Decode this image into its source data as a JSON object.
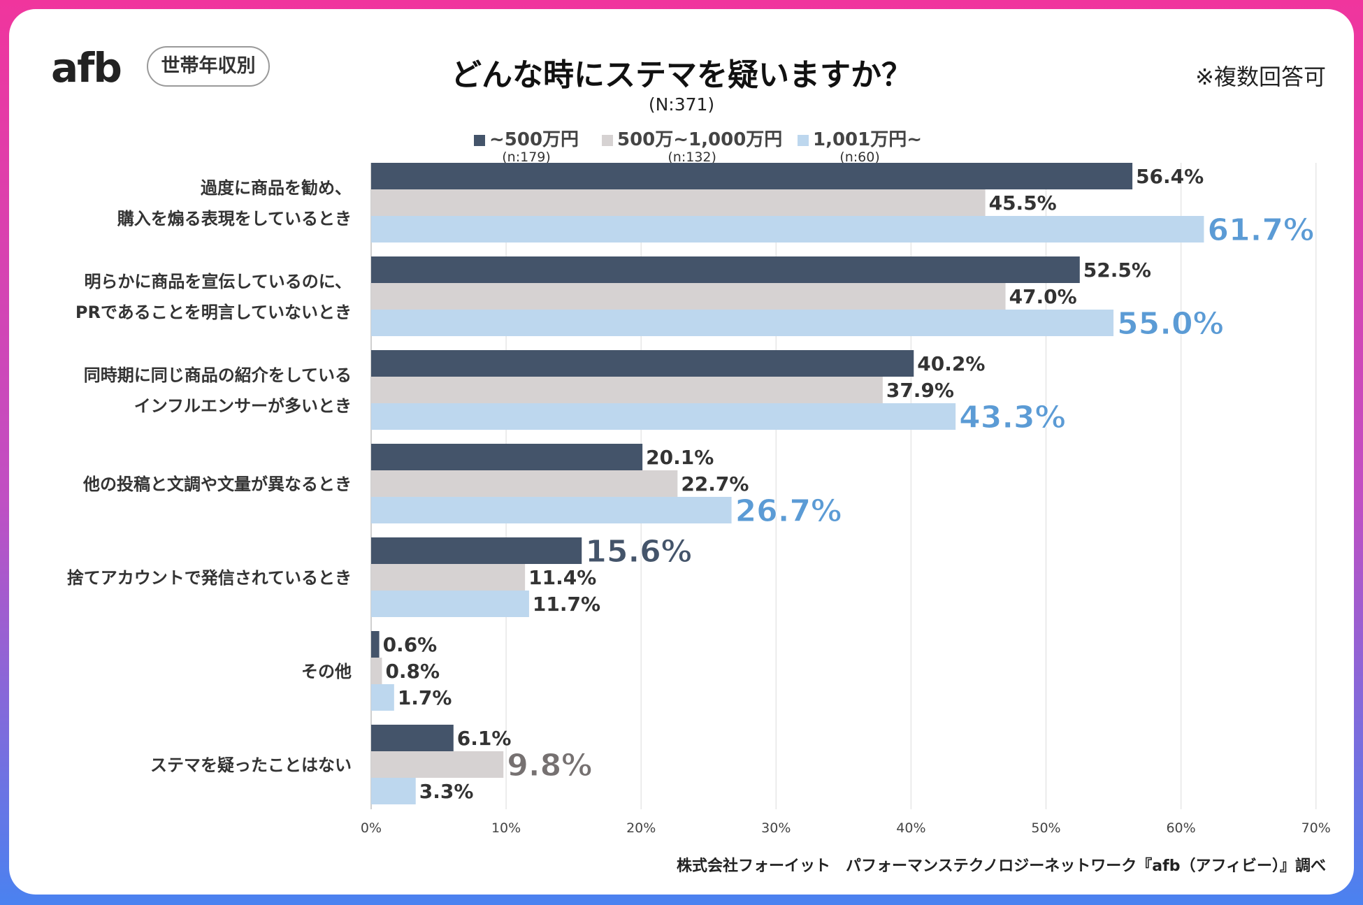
{
  "logo_text": "afb",
  "segment_pill": "世帯年収別",
  "note": "※複数回答可",
  "footer": "株式会社フォーイット　パフォーマンステクノロジーネットワーク『afb（アフィビー）』調べ",
  "colors": {
    "series1": "#44546a",
    "series2": "#d6d2d2",
    "series3": "#bdd7ee",
    "highlight3": "#5b9bd5",
    "highlight1": "#44546a",
    "highlight2": "#767171",
    "grid": "#e6e6e6"
  },
  "legend": [
    {
      "label": "~500万円",
      "count": "(n:179)"
    },
    {
      "label": "500万~1,000万円",
      "count": "(n:132)"
    },
    {
      "label": "1,001万円~",
      "count": "(n:60)"
    }
  ],
  "chart_data": {
    "type": "bar",
    "orientation": "horizontal",
    "title": "どんな時にステマを疑いますか？",
    "subtitle": "(N:371)",
    "categories": [
      [
        "過度に商品を勧め、",
        "購入を煽る表現をしているとき"
      ],
      [
        "明らかに商品を宣伝しているのに、",
        "PRであることを明言していないとき"
      ],
      [
        "同時期に同じ商品の紹介をしている",
        "インフルエンサーが多いとき"
      ],
      [
        "他の投稿と文調や文量が異なるとき"
      ],
      [
        "捨てアカウントで発信されているとき"
      ],
      [
        "その他"
      ],
      [
        "ステマを疑ったことはない"
      ]
    ],
    "series": [
      {
        "name": "~500万円",
        "values": [
          56.4,
          52.5,
          40.2,
          20.1,
          15.6,
          0.6,
          6.1
        ]
      },
      {
        "name": "500万~1,000万円",
        "values": [
          45.5,
          47.0,
          37.9,
          22.7,
          11.4,
          0.8,
          9.8
        ]
      },
      {
        "name": "1,001万円~",
        "values": [
          61.7,
          55.0,
          43.3,
          26.7,
          11.7,
          1.7,
          3.3
        ]
      }
    ],
    "highlight_labels": [
      [
        2
      ],
      [
        2
      ],
      [
        2
      ],
      [
        2
      ],
      [
        0
      ],
      [],
      [
        1
      ]
    ],
    "xlim": [
      0,
      70
    ],
    "xticks": [
      0,
      10,
      20,
      30,
      40,
      50,
      60,
      70
    ],
    "xtick_suffix": "%",
    "grid": true,
    "legend_position": "top"
  }
}
